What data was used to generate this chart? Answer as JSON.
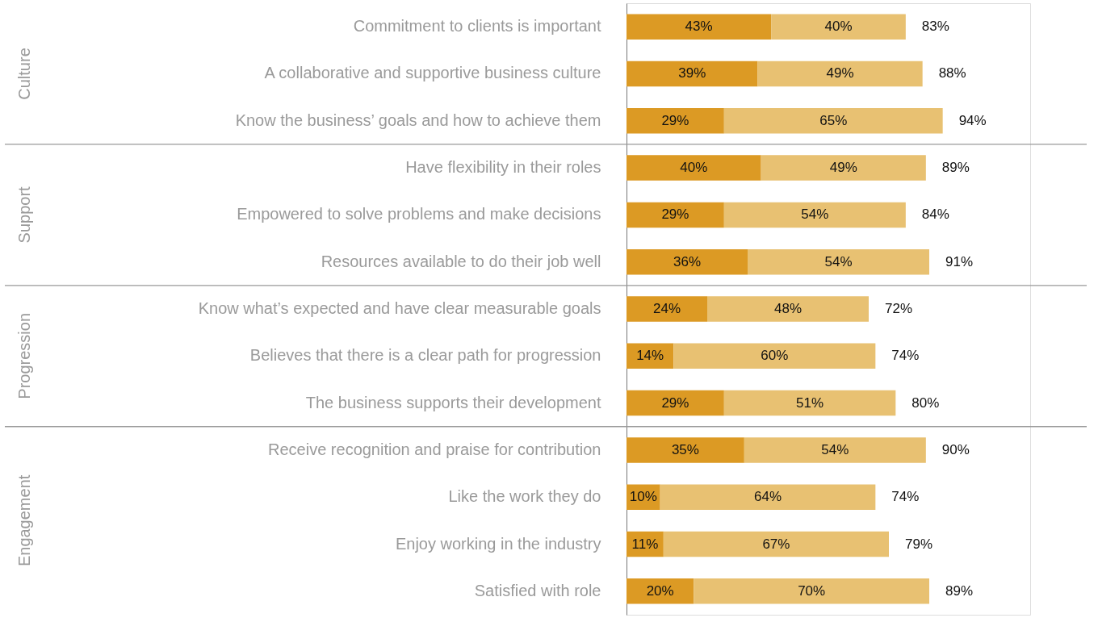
{
  "chart_data": {
    "type": "bar",
    "orientation": "horizontal",
    "stacked": true,
    "tick_labels": "y",
    "xlim": [
      0,
      120
    ],
    "categories": [
      "Commitment to clients is important",
      "A collaborative and supportive business culture",
      "Know the business’ goals and how to achieve them",
      "Have flexibility in their roles",
      "Empowered to solve problems and make decisions",
      "Resources available to do their job well",
      "Know what’s expected and have clear measurable goals",
      "Believes that there is a clear path for progression",
      "The business supports their development",
      "Receive recognition and praise for contribution",
      "Like the work they do",
      "Enjoy working in the industry",
      "Satisfied with role"
    ],
    "series": [
      {
        "color": "#dc9a24",
        "values": [
          43,
          39,
          29,
          40,
          29,
          36,
          24,
          14,
          29,
          35,
          10,
          11,
          20
        ],
        "value_labels": [
          "43%",
          "39%",
          "29%",
          "40%",
          "29%",
          "36%",
          "24%",
          "14%",
          "29%",
          "35%",
          "10%",
          "11%",
          "20%"
        ]
      },
      {
        "color": "#e8c172",
        "values": [
          40,
          49,
          65,
          49,
          54,
          54,
          48,
          60,
          51,
          54,
          64,
          67,
          70
        ],
        "value_labels": [
          "40%",
          "49%",
          "65%",
          "49%",
          "54%",
          "54%",
          "48%",
          "60%",
          "51%",
          "54%",
          "64%",
          "67%",
          "70%"
        ]
      }
    ],
    "totals": [
      "83%",
      "88%",
      "94%",
      "89%",
      "84%",
      "91%",
      "72%",
      "74%",
      "80%",
      "90%",
      "74%",
      "79%",
      "89%"
    ],
    "annotations": [
      "Culture",
      "Support",
      "Progression",
      "Engagement"
    ]
  }
}
